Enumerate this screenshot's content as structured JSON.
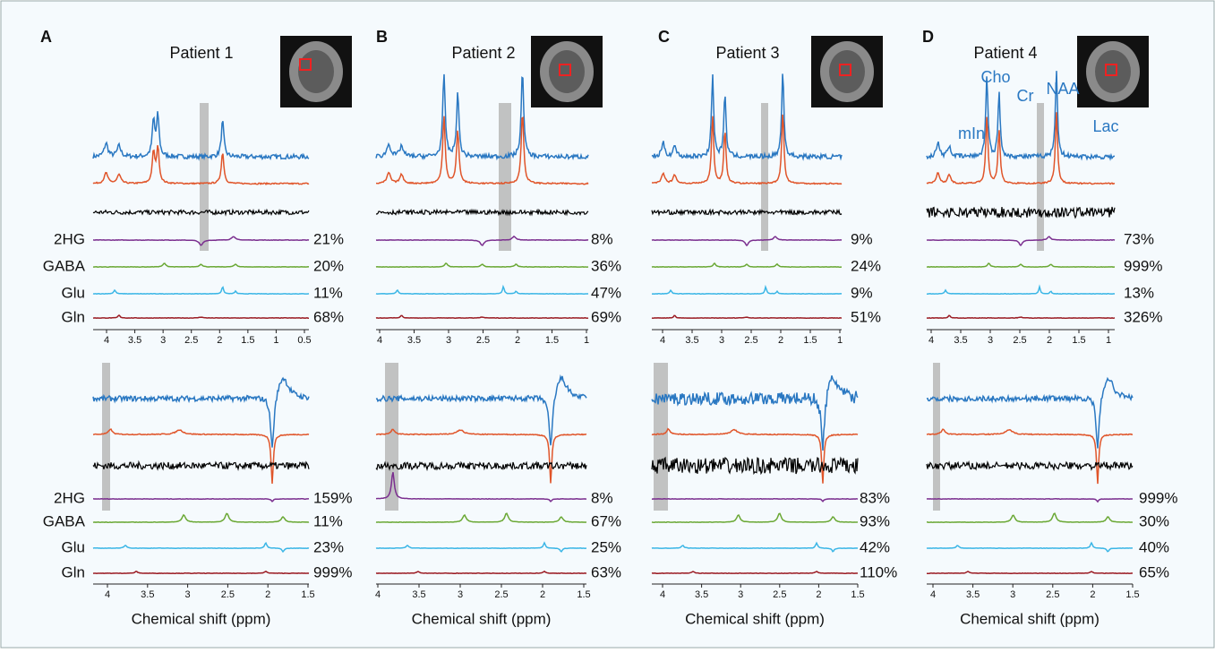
{
  "panels": [
    {
      "letter": "A",
      "title": "Patient 1",
      "top": {
        "ticks": [
          4,
          3.5,
          3,
          2.5,
          2,
          1.5,
          1,
          0.5
        ],
        "percents": [
          "21%",
          "20%",
          "11%",
          "68%"
        ]
      },
      "bottom": {
        "ticks": [
          4,
          3.5,
          3,
          2.5,
          2,
          1.5
        ],
        "percents": [
          "159%",
          "11%",
          "23%",
          "999%"
        ],
        "xlabel": "Chemical shift (ppm)"
      }
    },
    {
      "letter": "B",
      "title": "Patient 2",
      "top": {
        "ticks": [
          4,
          3.5,
          3,
          2.5,
          2,
          1.5,
          1
        ],
        "percents": [
          "8%",
          "36%",
          "47%",
          "69%"
        ]
      },
      "bottom": {
        "ticks": [
          4,
          3.5,
          3,
          2.5,
          2,
          1.5
        ],
        "percents": [
          "8%",
          "67%",
          "25%",
          "63%"
        ],
        "xlabel": "Chemical shift (ppm)"
      }
    },
    {
      "letter": "C",
      "title": "Patient 3",
      "top": {
        "ticks": [
          4,
          3.5,
          3,
          2.5,
          2,
          1.5,
          1
        ],
        "percents": [
          "9%",
          "24%",
          "9%",
          "51%"
        ]
      },
      "bottom": {
        "ticks": [
          4,
          3.5,
          3,
          2.5,
          2,
          1.5
        ],
        "percents": [
          "83%",
          "93%",
          "42%",
          "110%"
        ],
        "xlabel": "Chemical shift (ppm)"
      }
    },
    {
      "letter": "D",
      "title": "Patient 4",
      "top": {
        "ticks": [
          4,
          3.5,
          3,
          2.5,
          2,
          1.5,
          1
        ],
        "percents": [
          "73%",
          "999%",
          "13%",
          "326%"
        ]
      },
      "bottom": {
        "ticks": [
          4,
          3.5,
          3,
          2.5,
          2,
          1.5
        ],
        "percents": [
          "999%",
          "30%",
          "40%",
          "65%"
        ],
        "xlabel": "Chemical shift (ppm)"
      }
    }
  ],
  "metabolites": [
    "2HG",
    "GABA",
    "Glu",
    "Gln"
  ],
  "peak_labels": [
    "mIn",
    "Cho",
    "Cr",
    "NAA",
    "Lac"
  ]
}
